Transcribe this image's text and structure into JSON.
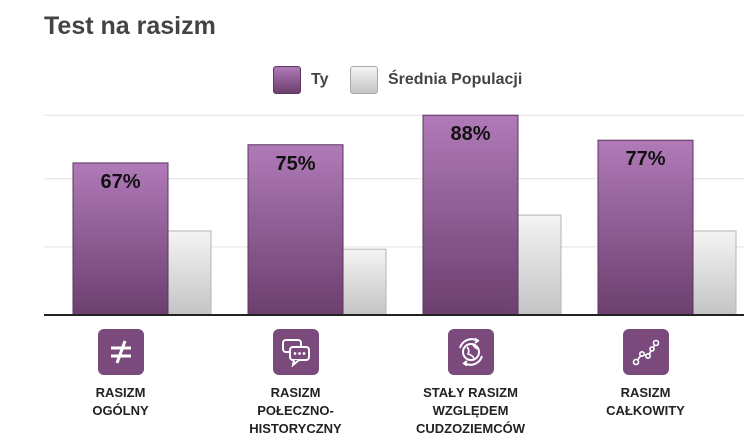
{
  "title": "Test na rasizm",
  "legend": {
    "ty": "Ty",
    "avg": "Średnia Populacji"
  },
  "colors": {
    "ty_top": "#b07ab8",
    "ty_bottom": "#6b3f6e",
    "avg_top": "#f4f4f4",
    "avg_bottom": "#c4c4c4",
    "icon_bg": "#7a4a7d"
  },
  "chart_data": {
    "type": "bar",
    "categories": [
      "RASIZM OGÓLNY",
      "RASIZM POŁECZNO-HISTORYCZNY",
      "STAŁY RASIZM WZGLĘDEM CUDZOZIEMCÓW",
      "RASIZM CAŁKOWITY"
    ],
    "series": [
      {
        "name": "Ty",
        "values": [
          67,
          75,
          88,
          77
        ]
      },
      {
        "name": "Średnia Populacji",
        "values": [
          37,
          29,
          44,
          37
        ]
      }
    ],
    "value_labels": [
      "67%",
      "75%",
      "88%",
      "77%"
    ],
    "ylim": [
      0,
      100
    ],
    "grid": true,
    "legend_position": "top-center"
  },
  "categories_display": [
    {
      "lines": [
        "RASIZM",
        "OGÓLNY"
      ],
      "icon": "not-equal-icon"
    },
    {
      "lines": [
        "RASIZM",
        "POŁECZNO-",
        "HISTORYCZNY"
      ],
      "icon": "speech-bubbles-icon"
    },
    {
      "lines": [
        "STAŁY RASIZM",
        "WZGLĘDEM",
        "CUDZOZIEMCÓW"
      ],
      "icon": "globe-icon"
    },
    {
      "lines": [
        "RASIZM",
        "CAŁKOWITY"
      ],
      "icon": "constellation-icon"
    }
  ]
}
